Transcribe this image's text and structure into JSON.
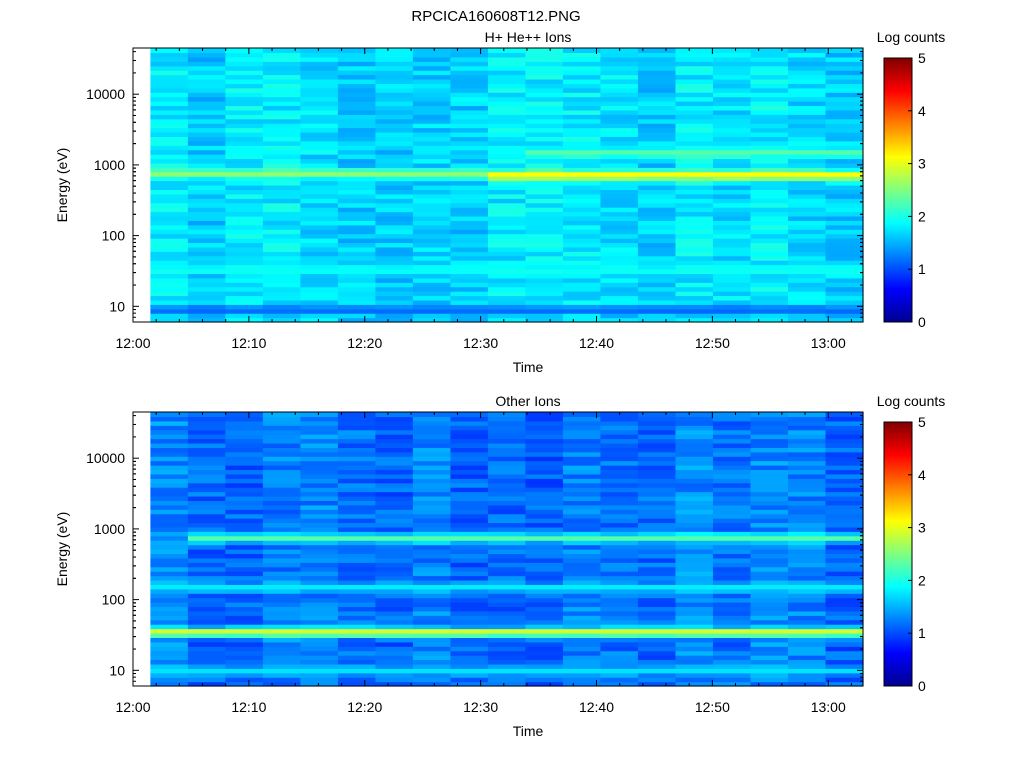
{
  "figure_title": "RPCICA160608T12.PNG",
  "chart_data": [
    {
      "type": "heatmap",
      "title": "H+ He++ Ions",
      "xlabel": "Time",
      "ylabel": "Energy (eV)",
      "yscale": "log",
      "xticks": [
        "12:00",
        "12:10",
        "12:20",
        "12:30",
        "12:40",
        "12:50",
        "13:00"
      ],
      "yticks": [
        "10",
        "100",
        "1000",
        "10000"
      ],
      "colorbar": {
        "label": "Log counts",
        "ticks": [
          "0",
          "1",
          "2",
          "3",
          "4",
          "5"
        ],
        "range": [
          0,
          5
        ]
      },
      "time_range_min": [
        0,
        63
      ],
      "energy_range_ev": [
        6,
        45000
      ],
      "background_log_counts": 1.75,
      "features": [
        {
          "description": "energy band",
          "energy_ev": 760,
          "start_min": 2,
          "end_min": 31,
          "log_counts": 2.6
        },
        {
          "description": "energy band",
          "energy_ev": 720,
          "start_min": 31,
          "end_min": 63,
          "log_counts": 3.2
        },
        {
          "description": "energy band",
          "energy_ev": 1500,
          "start_min": 34,
          "end_min": 63,
          "log_counts": 2.3
        },
        {
          "description": "low-energy band",
          "energy_ev": 33,
          "start_min": 2,
          "end_min": 63,
          "log_counts": 1.95
        },
        {
          "description": "lowest energies",
          "energy_ev": 9,
          "start_min": 2,
          "end_min": 63,
          "log_counts": 1.1
        }
      ]
    },
    {
      "type": "heatmap",
      "title": "Other Ions",
      "xlabel": "Time",
      "ylabel": "Energy (eV)",
      "yscale": "log",
      "xticks": [
        "12:00",
        "12:10",
        "12:20",
        "12:30",
        "12:40",
        "12:50",
        "13:00"
      ],
      "yticks": [
        "10",
        "100",
        "1000",
        "10000"
      ],
      "colorbar": {
        "label": "Log counts",
        "ticks": [
          "0",
          "1",
          "2",
          "3",
          "4",
          "5"
        ],
        "range": [
          0,
          5
        ]
      },
      "time_range_min": [
        0,
        63
      ],
      "energy_range_ev": [
        6,
        45000
      ],
      "background_log_counts": 1.2,
      "features": [
        {
          "description": "energy band",
          "energy_ev": 35,
          "start_min": 2,
          "end_min": 63,
          "log_counts": 3.0
        },
        {
          "description": "energy band",
          "energy_ev": 750,
          "start_min": 4,
          "end_min": 63,
          "log_counts": 2.3
        },
        {
          "description": "mid energies",
          "energy_ev": 150,
          "start_min": 2,
          "end_min": 63,
          "log_counts": 1.8
        },
        {
          "description": "lowest energies",
          "energy_ev": 10,
          "start_min": 2,
          "end_min": 63,
          "log_counts": 1.75
        }
      ]
    }
  ]
}
